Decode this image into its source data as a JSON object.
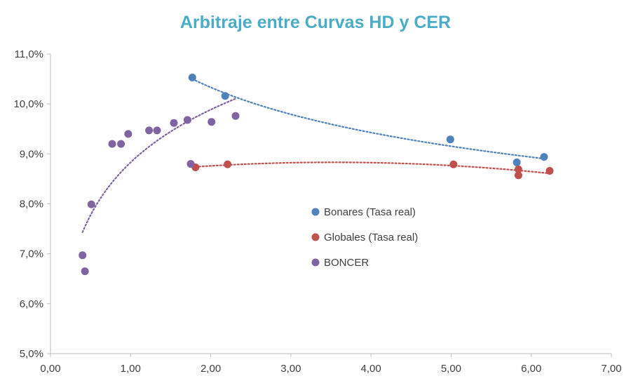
{
  "chart_data": {
    "type": "scatter",
    "title": "Arbitraje entre Curvas HD y CER",
    "title_color": "#4BACC6",
    "xlabel": "",
    "ylabel": "",
    "xlim": [
      0,
      7
    ],
    "ylim": [
      5,
      11
    ],
    "x_ticks": [
      "0,00",
      "1,00",
      "2,00",
      "3,00",
      "4,00",
      "5,00",
      "6,00",
      "7,00"
    ],
    "y_ticks": [
      "5,0%",
      "6,0%",
      "7,0%",
      "8,0%",
      "9,0%",
      "10,0%",
      "11,0%"
    ],
    "grid": false,
    "legend_position": "center",
    "series": [
      {
        "name": "Bonares (Tasa real)",
        "color": "#4F81BD",
        "trendline": "power",
        "points": [
          [
            1.77,
            10.53
          ],
          [
            2.18,
            10.16
          ],
          [
            4.99,
            9.29
          ],
          [
            5.82,
            8.83
          ],
          [
            6.16,
            8.94
          ]
        ]
      },
      {
        "name": "Globales (Tasa real)",
        "color": "#C0504D",
        "trendline": "polynomial",
        "points": [
          [
            1.81,
            8.73
          ],
          [
            2.21,
            8.79
          ],
          [
            5.03,
            8.79
          ],
          [
            5.84,
            8.69
          ],
          [
            5.84,
            8.57
          ],
          [
            6.23,
            8.66
          ]
        ]
      },
      {
        "name": "BONCER",
        "color": "#8064A2",
        "trendline": "logarithmic",
        "points": [
          [
            0.4,
            6.97
          ],
          [
            0.43,
            6.65
          ],
          [
            0.51,
            7.99
          ],
          [
            0.77,
            9.2
          ],
          [
            0.88,
            9.2
          ],
          [
            0.97,
            9.4
          ],
          [
            1.23,
            9.47
          ],
          [
            1.33,
            9.47
          ],
          [
            1.54,
            9.62
          ],
          [
            1.71,
            9.68
          ],
          [
            1.75,
            8.8
          ],
          [
            2.01,
            9.64
          ],
          [
            2.31,
            9.76
          ]
        ]
      }
    ]
  }
}
